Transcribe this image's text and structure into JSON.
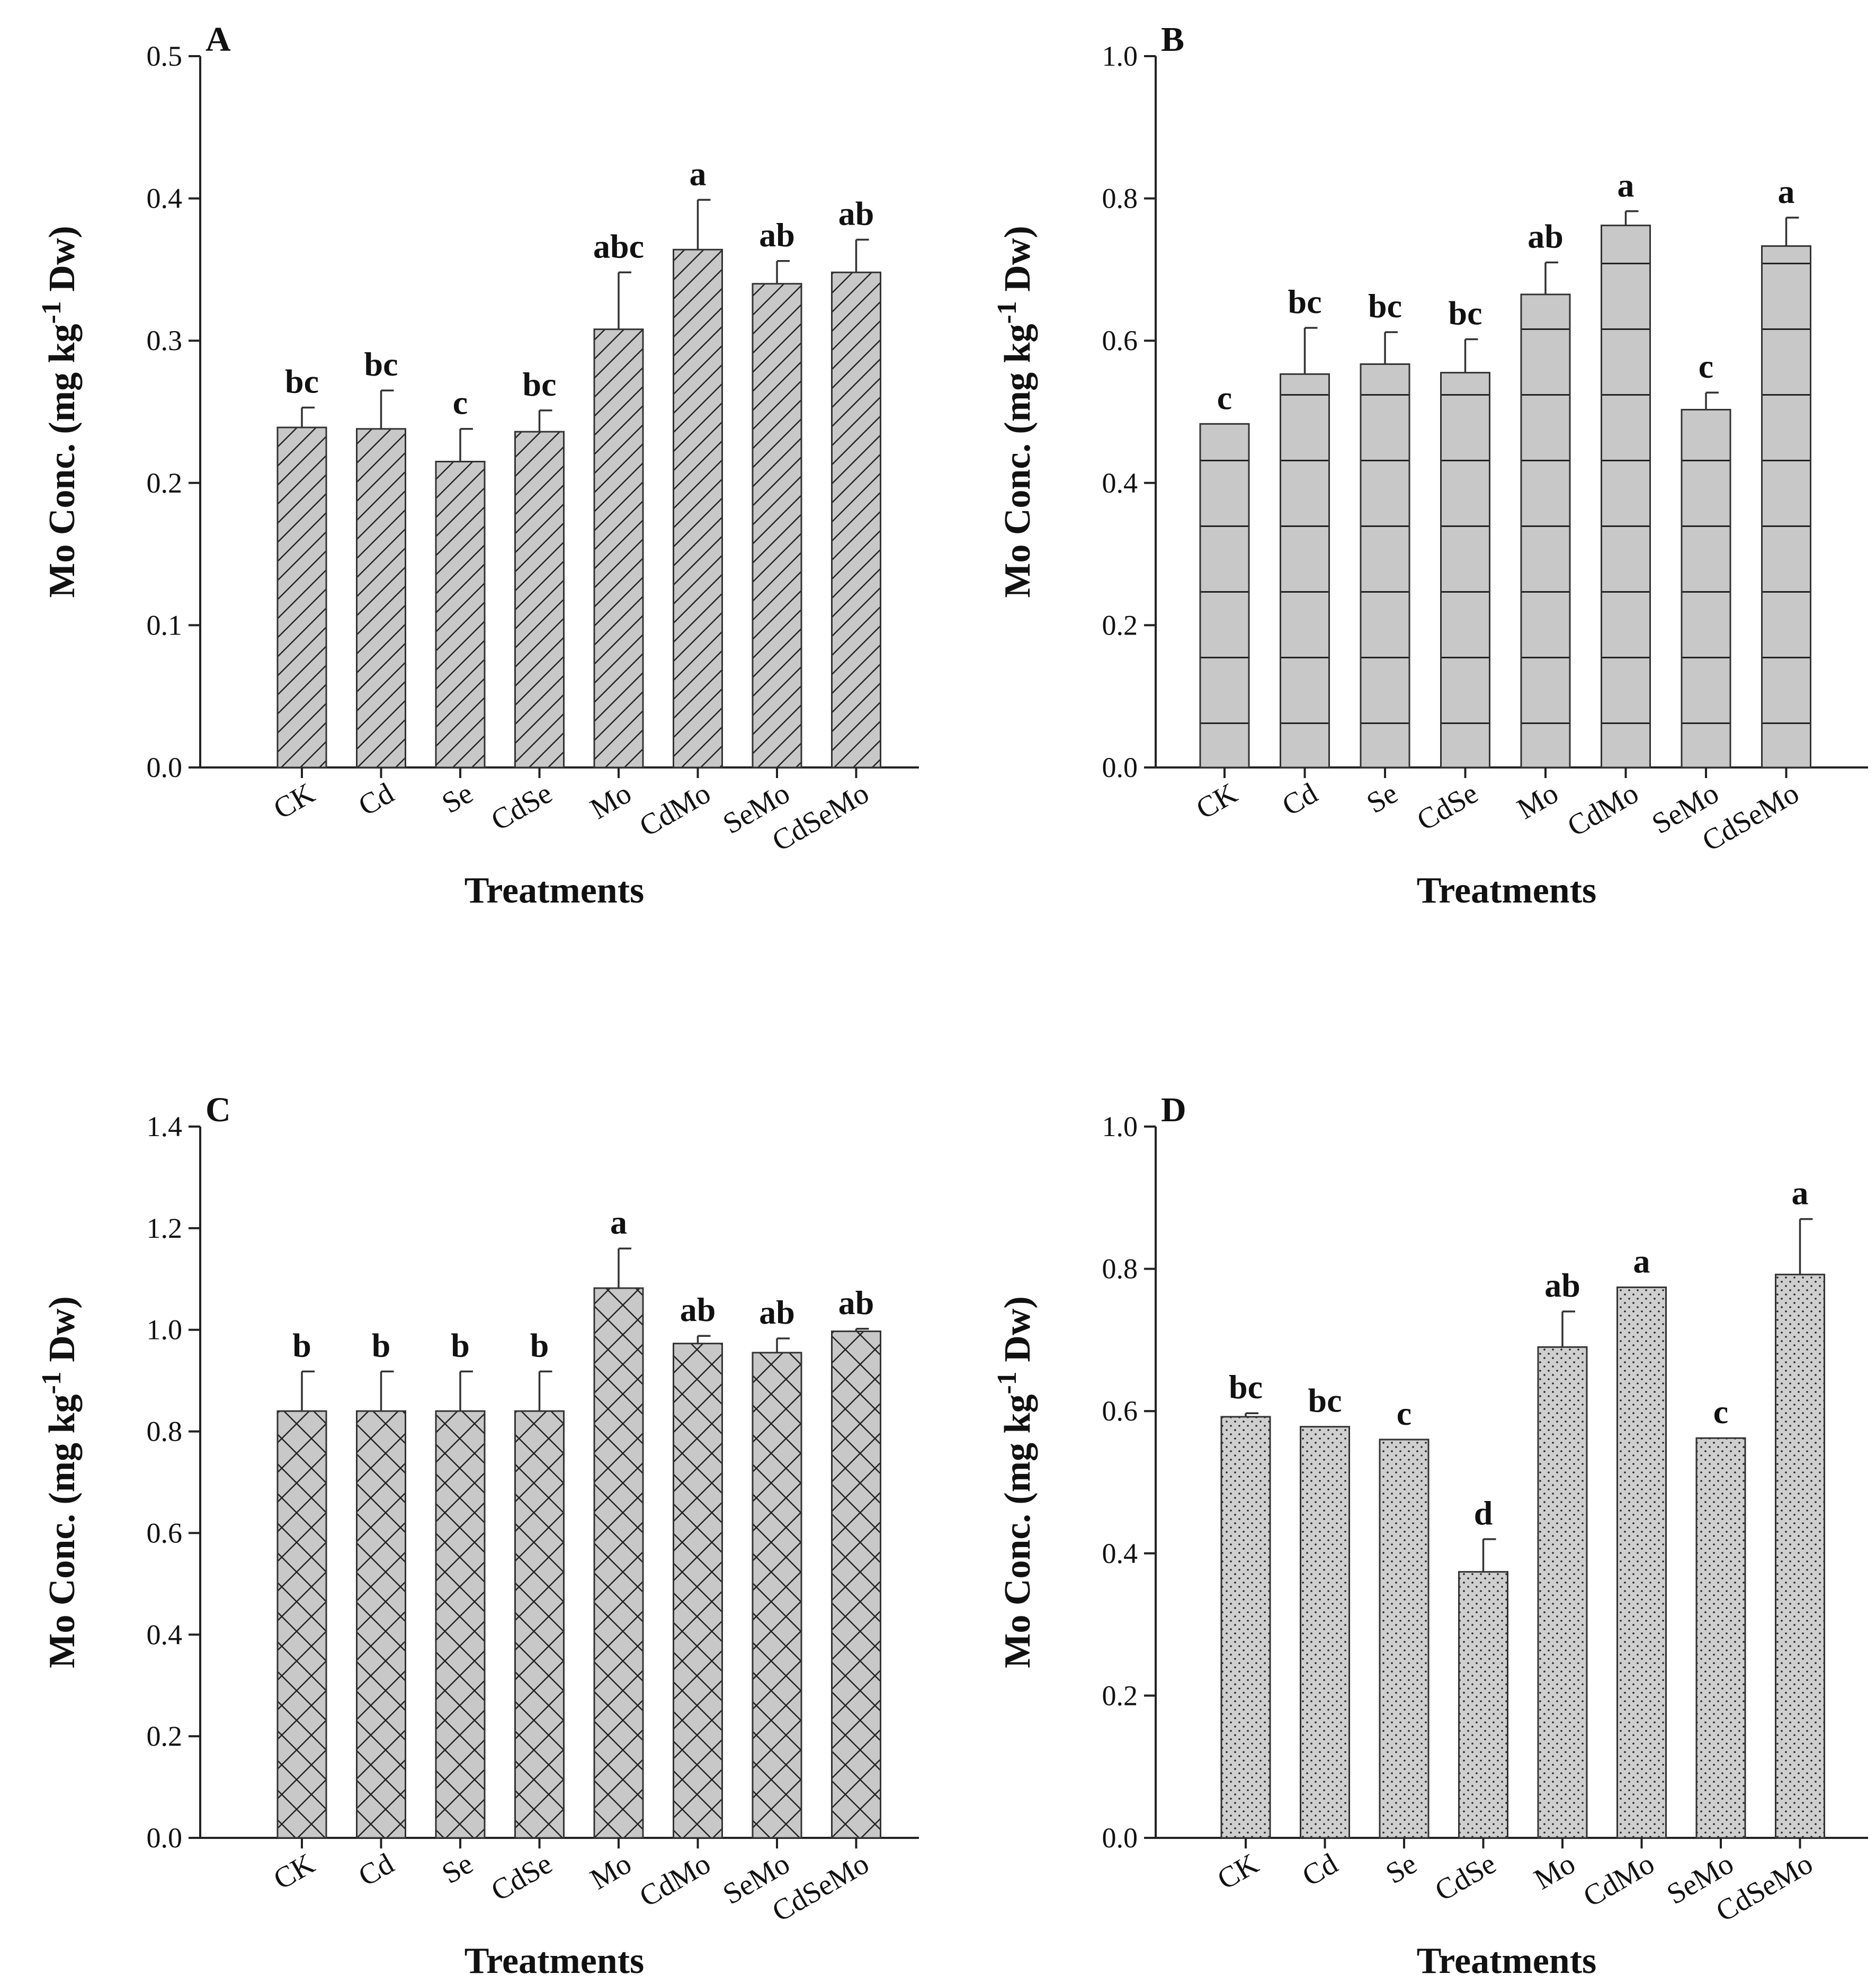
{
  "chart_data": [
    {
      "type": "bar",
      "panel": "A",
      "pattern": "diagonal",
      "categories": [
        "CK",
        "Cd",
        "Se",
        "CdSe",
        "Mo",
        "CdMo",
        "SeMo",
        "CdSeMo"
      ],
      "values": [
        0.239,
        0.238,
        0.215,
        0.236,
        0.308,
        0.364,
        0.34,
        0.348
      ],
      "errors": [
        0.014,
        0.027,
        0.023,
        0.015,
        0.04,
        0.035,
        0.016,
        0.023
      ],
      "letters": [
        "bc",
        "bc",
        "c",
        "bc",
        "abc",
        "a",
        "ab",
        "ab"
      ],
      "ylim": [
        0,
        0.5
      ],
      "yticks": [
        "0.0",
        "0.1",
        "0.2",
        "0.3",
        "0.4",
        "0.5"
      ],
      "xlabel": "Treatments",
      "ylabel": "Mo Conc. (mg kg",
      "ylabel_sup": "-1",
      "ylabel_end": " Dw)"
    },
    {
      "type": "bar",
      "panel": "B",
      "pattern": "horizontal",
      "categories": [
        "CK",
        "Cd",
        "Se",
        "CdSe",
        "Mo",
        "CdMo",
        "SeMo",
        "CdSeMo"
      ],
      "values": [
        0.483,
        0.553,
        0.567,
        0.555,
        0.665,
        0.762,
        0.503,
        0.733
      ],
      "errors": [
        0.0,
        0.065,
        0.045,
        0.047,
        0.045,
        0.02,
        0.024,
        0.04
      ],
      "letters": [
        "c",
        "bc",
        "bc",
        "bc",
        "ab",
        "a",
        "c",
        "a"
      ],
      "ylim": [
        0,
        1.0
      ],
      "yticks": [
        "0.0",
        "0.2",
        "0.4",
        "0.6",
        "0.8",
        "1.0"
      ],
      "xlabel": "Treatments",
      "ylabel": "Mo Conc. (mg kg",
      "ylabel_sup": "-1",
      "ylabel_end": " Dw)"
    },
    {
      "type": "bar",
      "panel": "C",
      "pattern": "crosshatch",
      "categories": [
        "CK",
        "Cd",
        "Se",
        "CdSe",
        "Mo",
        "CdMo",
        "SeMo",
        "CdSeMo"
      ],
      "values": [
        0.84,
        0.84,
        0.84,
        0.84,
        1.082,
        0.973,
        0.955,
        0.997
      ],
      "errors": [
        0.078,
        0.078,
        0.078,
        0.078,
        0.078,
        0.015,
        0.028,
        0.005
      ],
      "letters": [
        "b",
        "b",
        "b",
        "b",
        "a",
        "ab",
        "ab",
        "ab"
      ],
      "ylim": [
        0,
        1.4
      ],
      "yticks": [
        "0.0",
        "0.2",
        "0.4",
        "0.6",
        "0.8",
        "1.0",
        "1.2",
        "1.4"
      ],
      "xlabel": "Treatments",
      "ylabel": "Mo Conc. (mg kg",
      "ylabel_sup": "-1",
      "ylabel_end": " Dw)"
    },
    {
      "type": "bar",
      "panel": "D",
      "pattern": "dots",
      "categories": [
        "CK",
        "Cd",
        "Se",
        "CdSe",
        "Mo",
        "CdMo",
        "SeMo",
        "CdSeMo"
      ],
      "values": [
        0.592,
        0.578,
        0.56,
        0.374,
        0.69,
        0.774,
        0.562,
        0.792
      ],
      "errors": [
        0.005,
        0.0,
        0.0,
        0.046,
        0.05,
        0.0,
        0.0,
        0.078
      ],
      "letters": [
        "bc",
        "bc",
        "c",
        "d",
        "ab",
        "a",
        "c",
        "a"
      ],
      "ylim": [
        0,
        1.0
      ],
      "yticks": [
        "0.0",
        "0.2",
        "0.4",
        "0.6",
        "0.8",
        "1.0"
      ],
      "xlabel": "Treatments",
      "ylabel": "Mo Conc. (mg kg",
      "ylabel_sup": "-1",
      "ylabel_end": " Dw)"
    }
  ],
  "colors": {
    "bar_fill": "#c8c8c8",
    "pattern_stroke": "#222222",
    "axis": "#222222"
  }
}
